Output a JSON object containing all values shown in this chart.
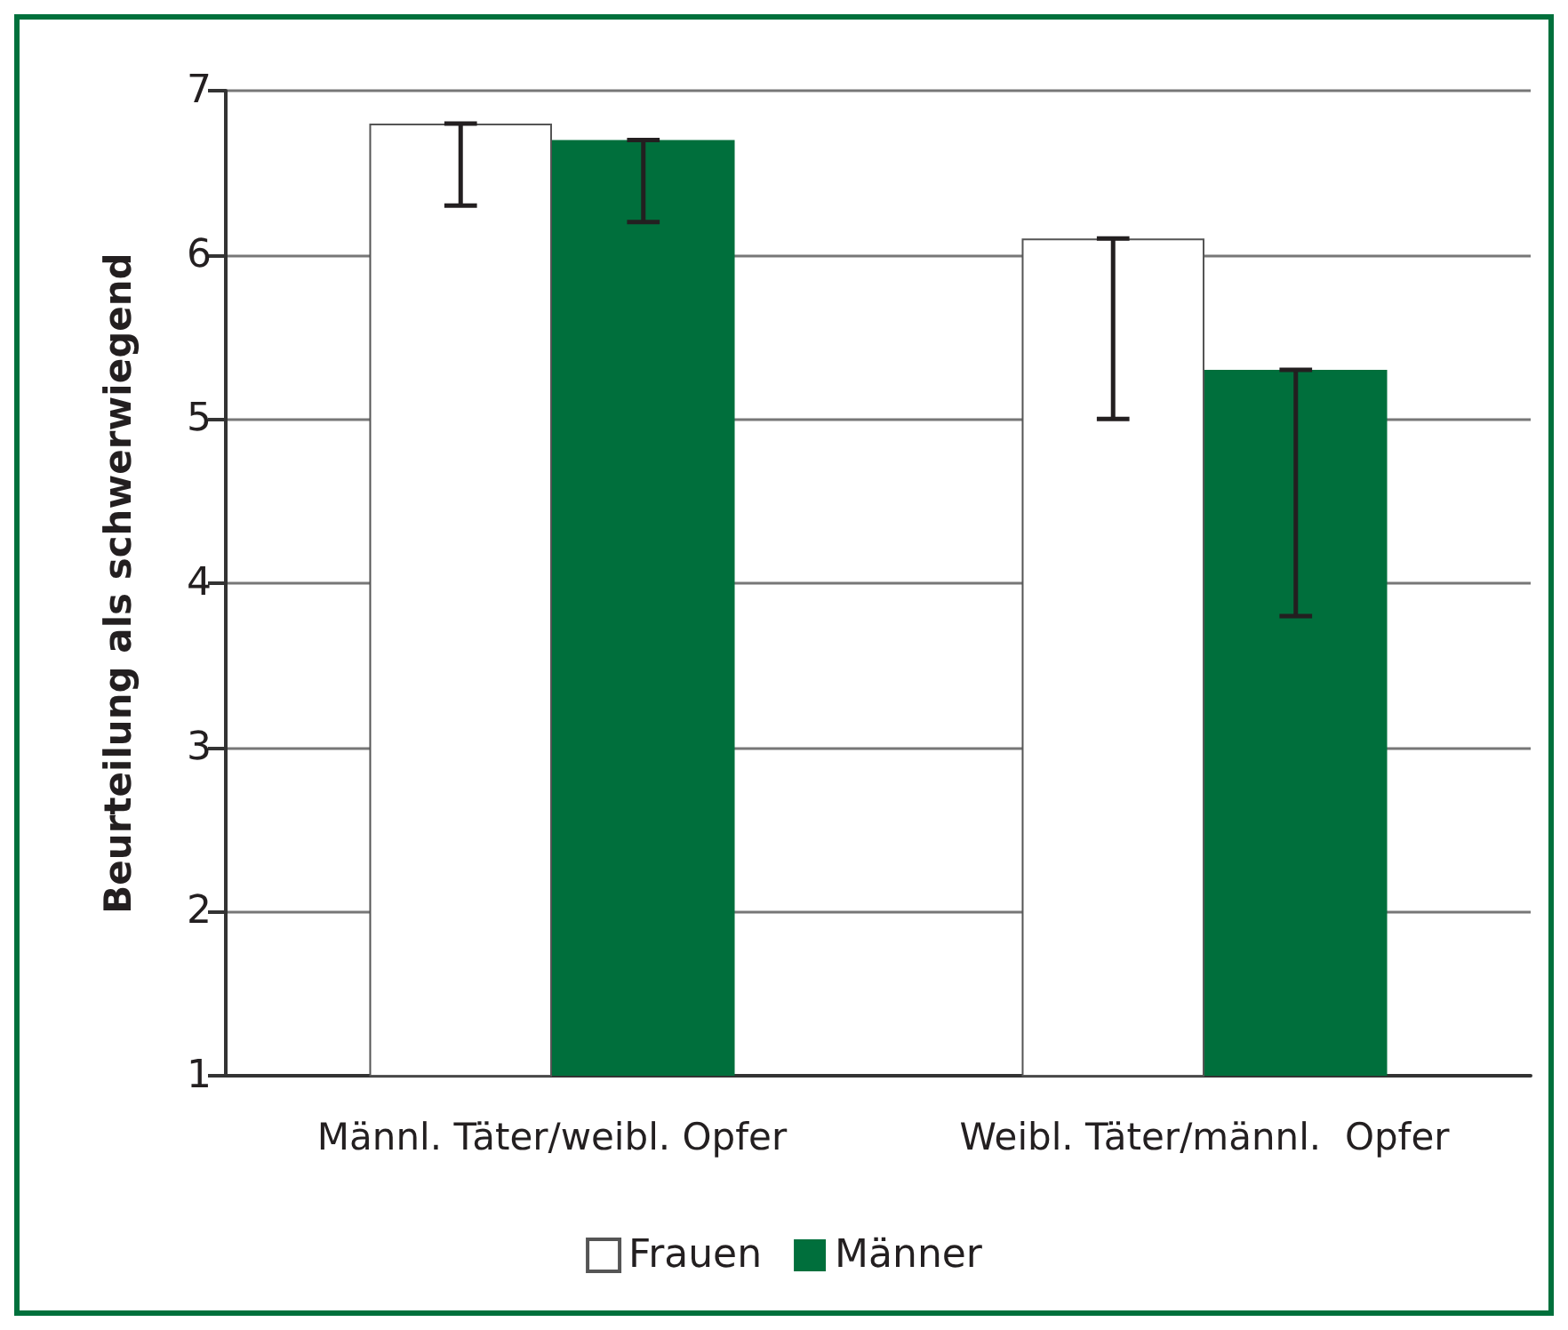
{
  "chart_data": {
    "type": "bar",
    "ylabel": "Beurteilung als schwerwiegend",
    "categories": [
      "Männl. Täter/weibl. Opfer",
      "Weibl. Täter/männl.  Opfer"
    ],
    "series": [
      {
        "name": "Frauen",
        "color": "#ffffff",
        "values": [
          6.8,
          6.1
        ],
        "errors": [
          [
            6.3,
            6.8
          ],
          [
            5.0,
            6.1
          ]
        ]
      },
      {
        "name": "Männer",
        "color": "#006f3c",
        "values": [
          6.7,
          5.3
        ],
        "errors": [
          [
            6.2,
            6.7
          ],
          [
            3.8,
            5.3
          ]
        ]
      }
    ],
    "ylim": [
      1,
      7
    ],
    "yticks": [
      1,
      2,
      3,
      4,
      5,
      6,
      7
    ],
    "grid": "y",
    "legend": "bottom"
  }
}
